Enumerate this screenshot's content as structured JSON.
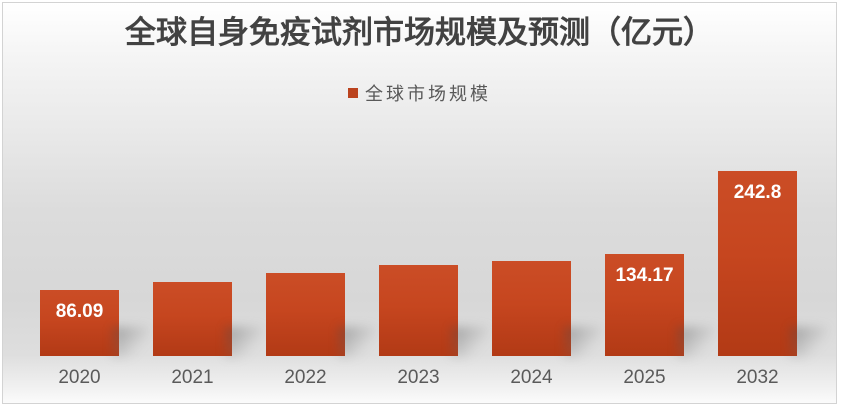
{
  "colors": {
    "bar_gradient_top": "#cb4d26",
    "bar_gradient_bottom": "#b23a15",
    "legend_swatch": "#bb431e",
    "title_text": "#424242",
    "legend_text": "#595959",
    "axis_text": "#5a5a5a",
    "data_label_text": "#ffffff",
    "frame_border": "#d3d3d3",
    "background_mid": "#d7d7d7",
    "background_edge": "#ffffff"
  },
  "chart_data": {
    "type": "bar",
    "title": "全球自身免疫试剂市场规模及预测（亿元）",
    "legend": [
      "全球市场规模"
    ],
    "legend_position": "top-center",
    "grid": false,
    "y_axis_shown": false,
    "categories": [
      "2020",
      "2021",
      "2022",
      "2023",
      "2024",
      "2025",
      "2032"
    ],
    "series": [
      {
        "name": "全球市场规模",
        "values": [
          86.09,
          97,
          109,
          119,
          125,
          134.17,
          242.8
        ],
        "data_labels": [
          "86.09",
          "",
          "",
          "",
          "",
          "134.17",
          "242.8"
        ]
      }
    ],
    "ylim": [
      0,
      260
    ],
    "xlabel": "",
    "ylabel": ""
  }
}
